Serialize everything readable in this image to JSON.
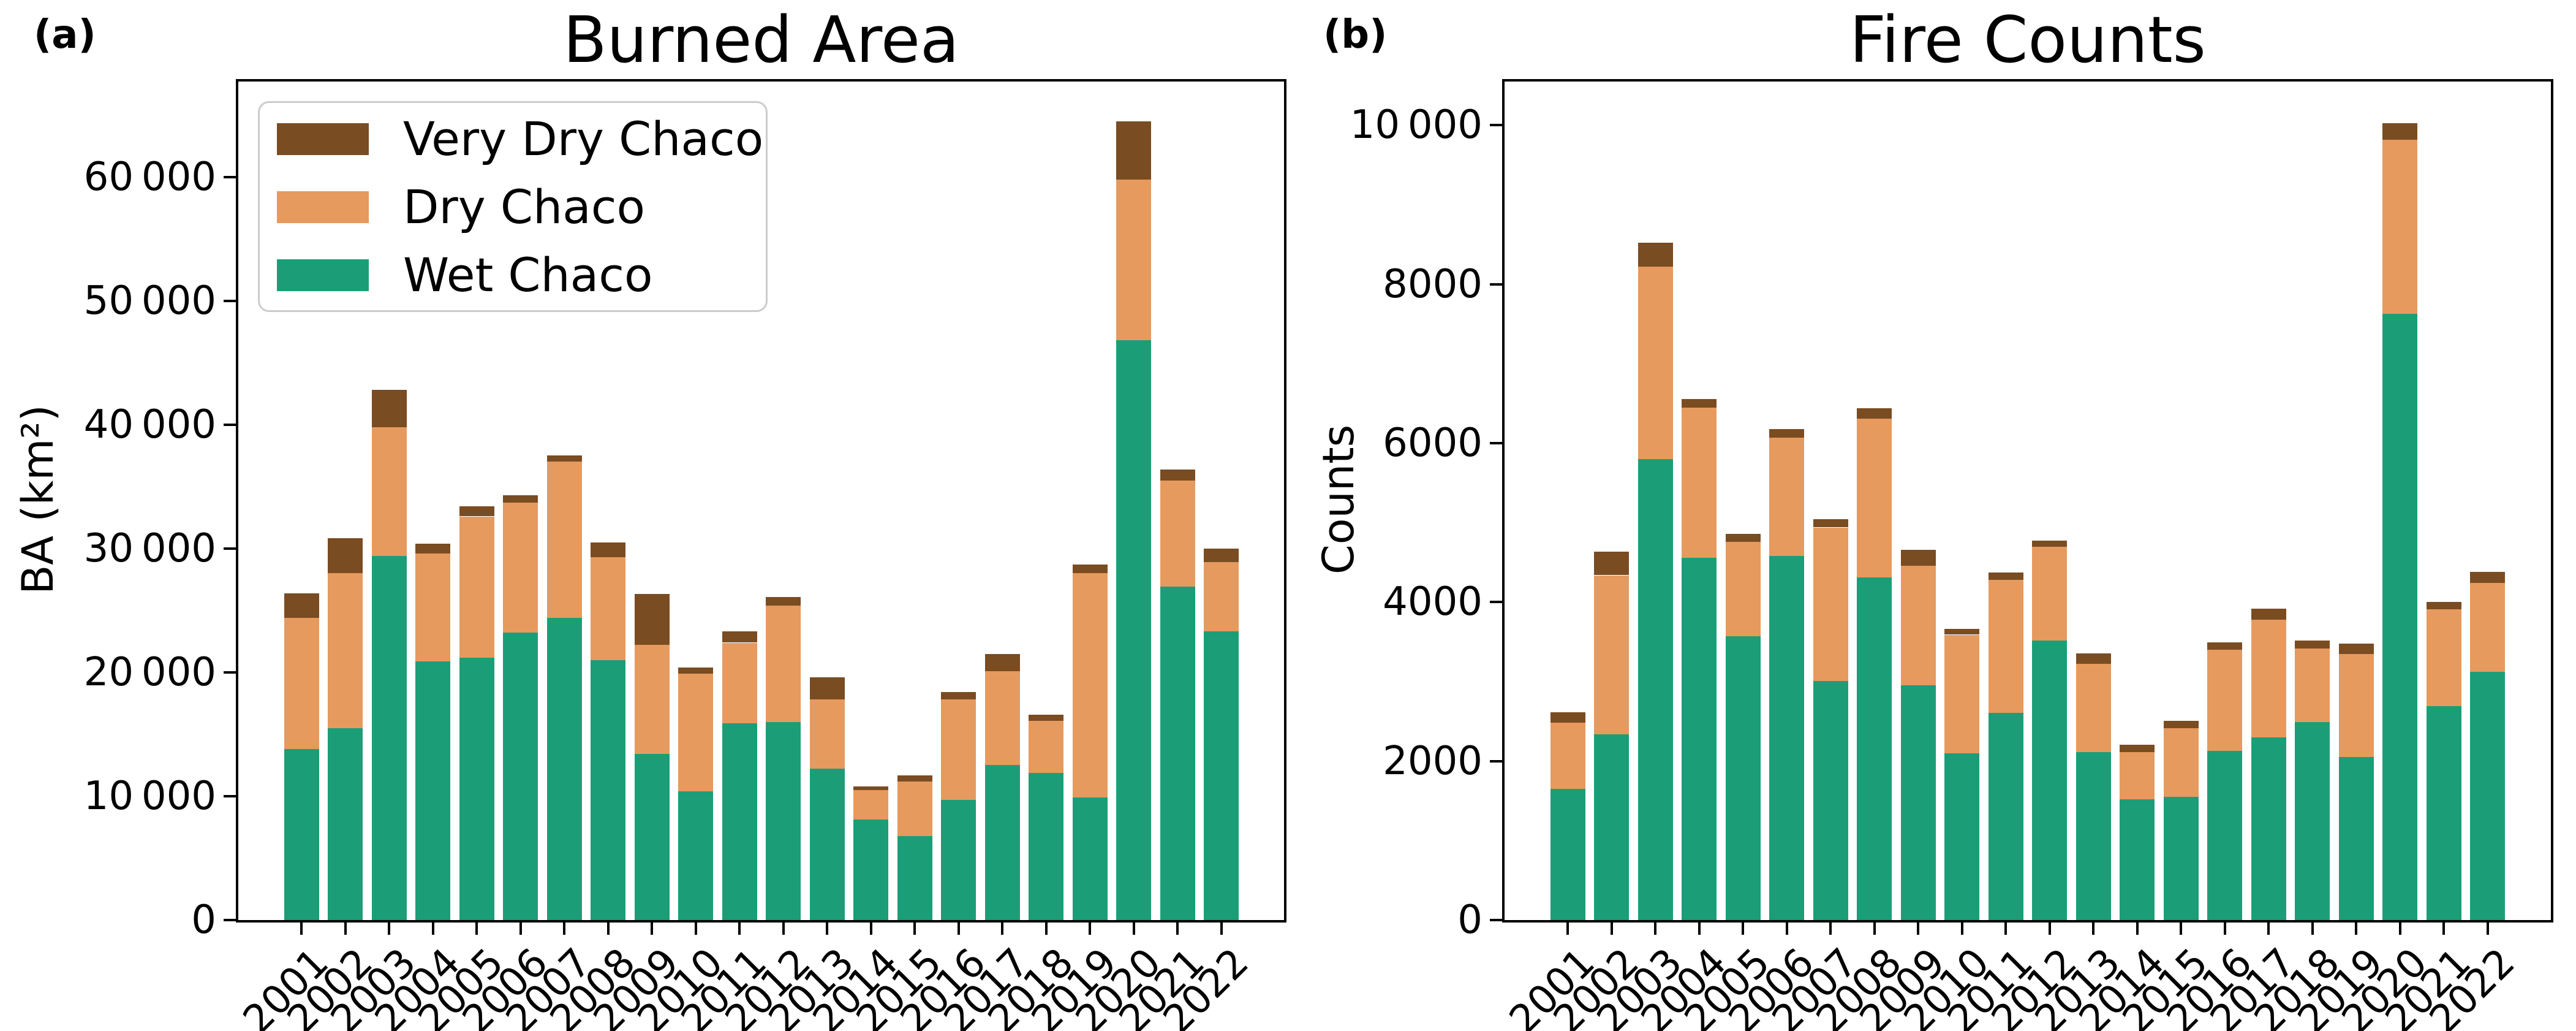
{
  "figure": {
    "background": "#ffffff",
    "text_color": "#000000",
    "spine_color": "#000000",
    "legend_border_color": "#cccccc"
  },
  "legend": {
    "entries": [
      "Very Dry Chaco",
      "Dry Chaco",
      "Wet Chaco"
    ]
  },
  "chart_data": [
    {
      "id": "burned-area",
      "type": "bar",
      "stacked": true,
      "panel_label": "(a)",
      "title": "Burned Area",
      "ylabel": "BA (km²)",
      "xlabel": "",
      "grid": false,
      "legend_position": "upper left",
      "categories": [
        "2001",
        "2002",
        "2003",
        "2004",
        "2005",
        "2006",
        "2007",
        "2008",
        "2009",
        "2010",
        "2011",
        "2012",
        "2013",
        "2014",
        "2015",
        "2016",
        "2017",
        "2018",
        "2019",
        "2020",
        "2021",
        "2022"
      ],
      "series": [
        {
          "name": "Wet Chaco",
          "color": "#1b9e77",
          "values": [
            13800,
            15500,
            29400,
            20900,
            21200,
            23200,
            24400,
            21000,
            13400,
            10400,
            15900,
            16000,
            12200,
            8100,
            6800,
            9700,
            12500,
            11900,
            9900,
            46800,
            26900,
            23300
          ]
        },
        {
          "name": "Dry Chaco",
          "color": "#e69a5e",
          "values": [
            10600,
            12500,
            10400,
            8700,
            11400,
            10500,
            12600,
            8300,
            8800,
            9500,
            6500,
            9400,
            5600,
            2400,
            4400,
            8100,
            7600,
            4200,
            18100,
            13000,
            8600,
            5600
          ]
        },
        {
          "name": "Very Dry Chaco",
          "color": "#7a4c22",
          "values": [
            2000,
            2800,
            3000,
            800,
            800,
            600,
            500,
            1200,
            4100,
            500,
            900,
            700,
            1800,
            300,
            500,
            600,
            1400,
            500,
            700,
            4700,
            900,
            1100
          ]
        }
      ],
      "ylim": [
        0,
        67700
      ],
      "yticks": [
        {
          "value": 0,
          "label": "0"
        },
        {
          "value": 10000,
          "label": "10 000"
        },
        {
          "value": 20000,
          "label": "20 000"
        },
        {
          "value": 30000,
          "label": "30 000"
        },
        {
          "value": 40000,
          "label": "40 000"
        },
        {
          "value": 50000,
          "label": "50 000"
        },
        {
          "value": 60000,
          "label": "60 000"
        }
      ]
    },
    {
      "id": "fire-counts",
      "type": "bar",
      "stacked": true,
      "panel_label": "(b)",
      "title": "Fire Counts",
      "ylabel": "Counts",
      "xlabel": "",
      "grid": false,
      "legend_position": "none",
      "categories": [
        "2001",
        "2002",
        "2003",
        "2004",
        "2005",
        "2006",
        "2007",
        "2008",
        "2009",
        "2010",
        "2011",
        "2012",
        "2013",
        "2014",
        "2015",
        "2016",
        "2017",
        "2018",
        "2019",
        "2020",
        "2021",
        "2022"
      ],
      "series": [
        {
          "name": "Wet Chaco",
          "color": "#1b9e77",
          "values": [
            1650,
            2340,
            5800,
            4560,
            3570,
            4580,
            3010,
            4310,
            2950,
            2100,
            2610,
            3520,
            2110,
            1520,
            1550,
            2130,
            2300,
            2490,
            2050,
            7630,
            2690,
            3120
          ]
        },
        {
          "name": "Dry Chaco",
          "color": "#e69a5e",
          "values": [
            830,
            2000,
            2420,
            1890,
            1190,
            1490,
            1930,
            2000,
            1510,
            1490,
            1670,
            1180,
            1110,
            590,
            860,
            1270,
            1480,
            930,
            1300,
            2190,
            1220,
            1120
          ]
        },
        {
          "name": "Very Dry Chaco",
          "color": "#7a4c22",
          "values": [
            130,
            290,
            300,
            110,
            100,
            110,
            100,
            130,
            200,
            70,
            90,
            80,
            130,
            90,
            90,
            90,
            140,
            100,
            130,
            210,
            90,
            140
          ]
        }
      ],
      "ylim": [
        0,
        10550
      ],
      "yticks": [
        {
          "value": 0,
          "label": "0"
        },
        {
          "value": 2000,
          "label": "2000"
        },
        {
          "value": 4000,
          "label": "4000"
        },
        {
          "value": 6000,
          "label": "6000"
        },
        {
          "value": 8000,
          "label": "8000"
        },
        {
          "value": 10000,
          "label": "10 000"
        }
      ]
    }
  ]
}
